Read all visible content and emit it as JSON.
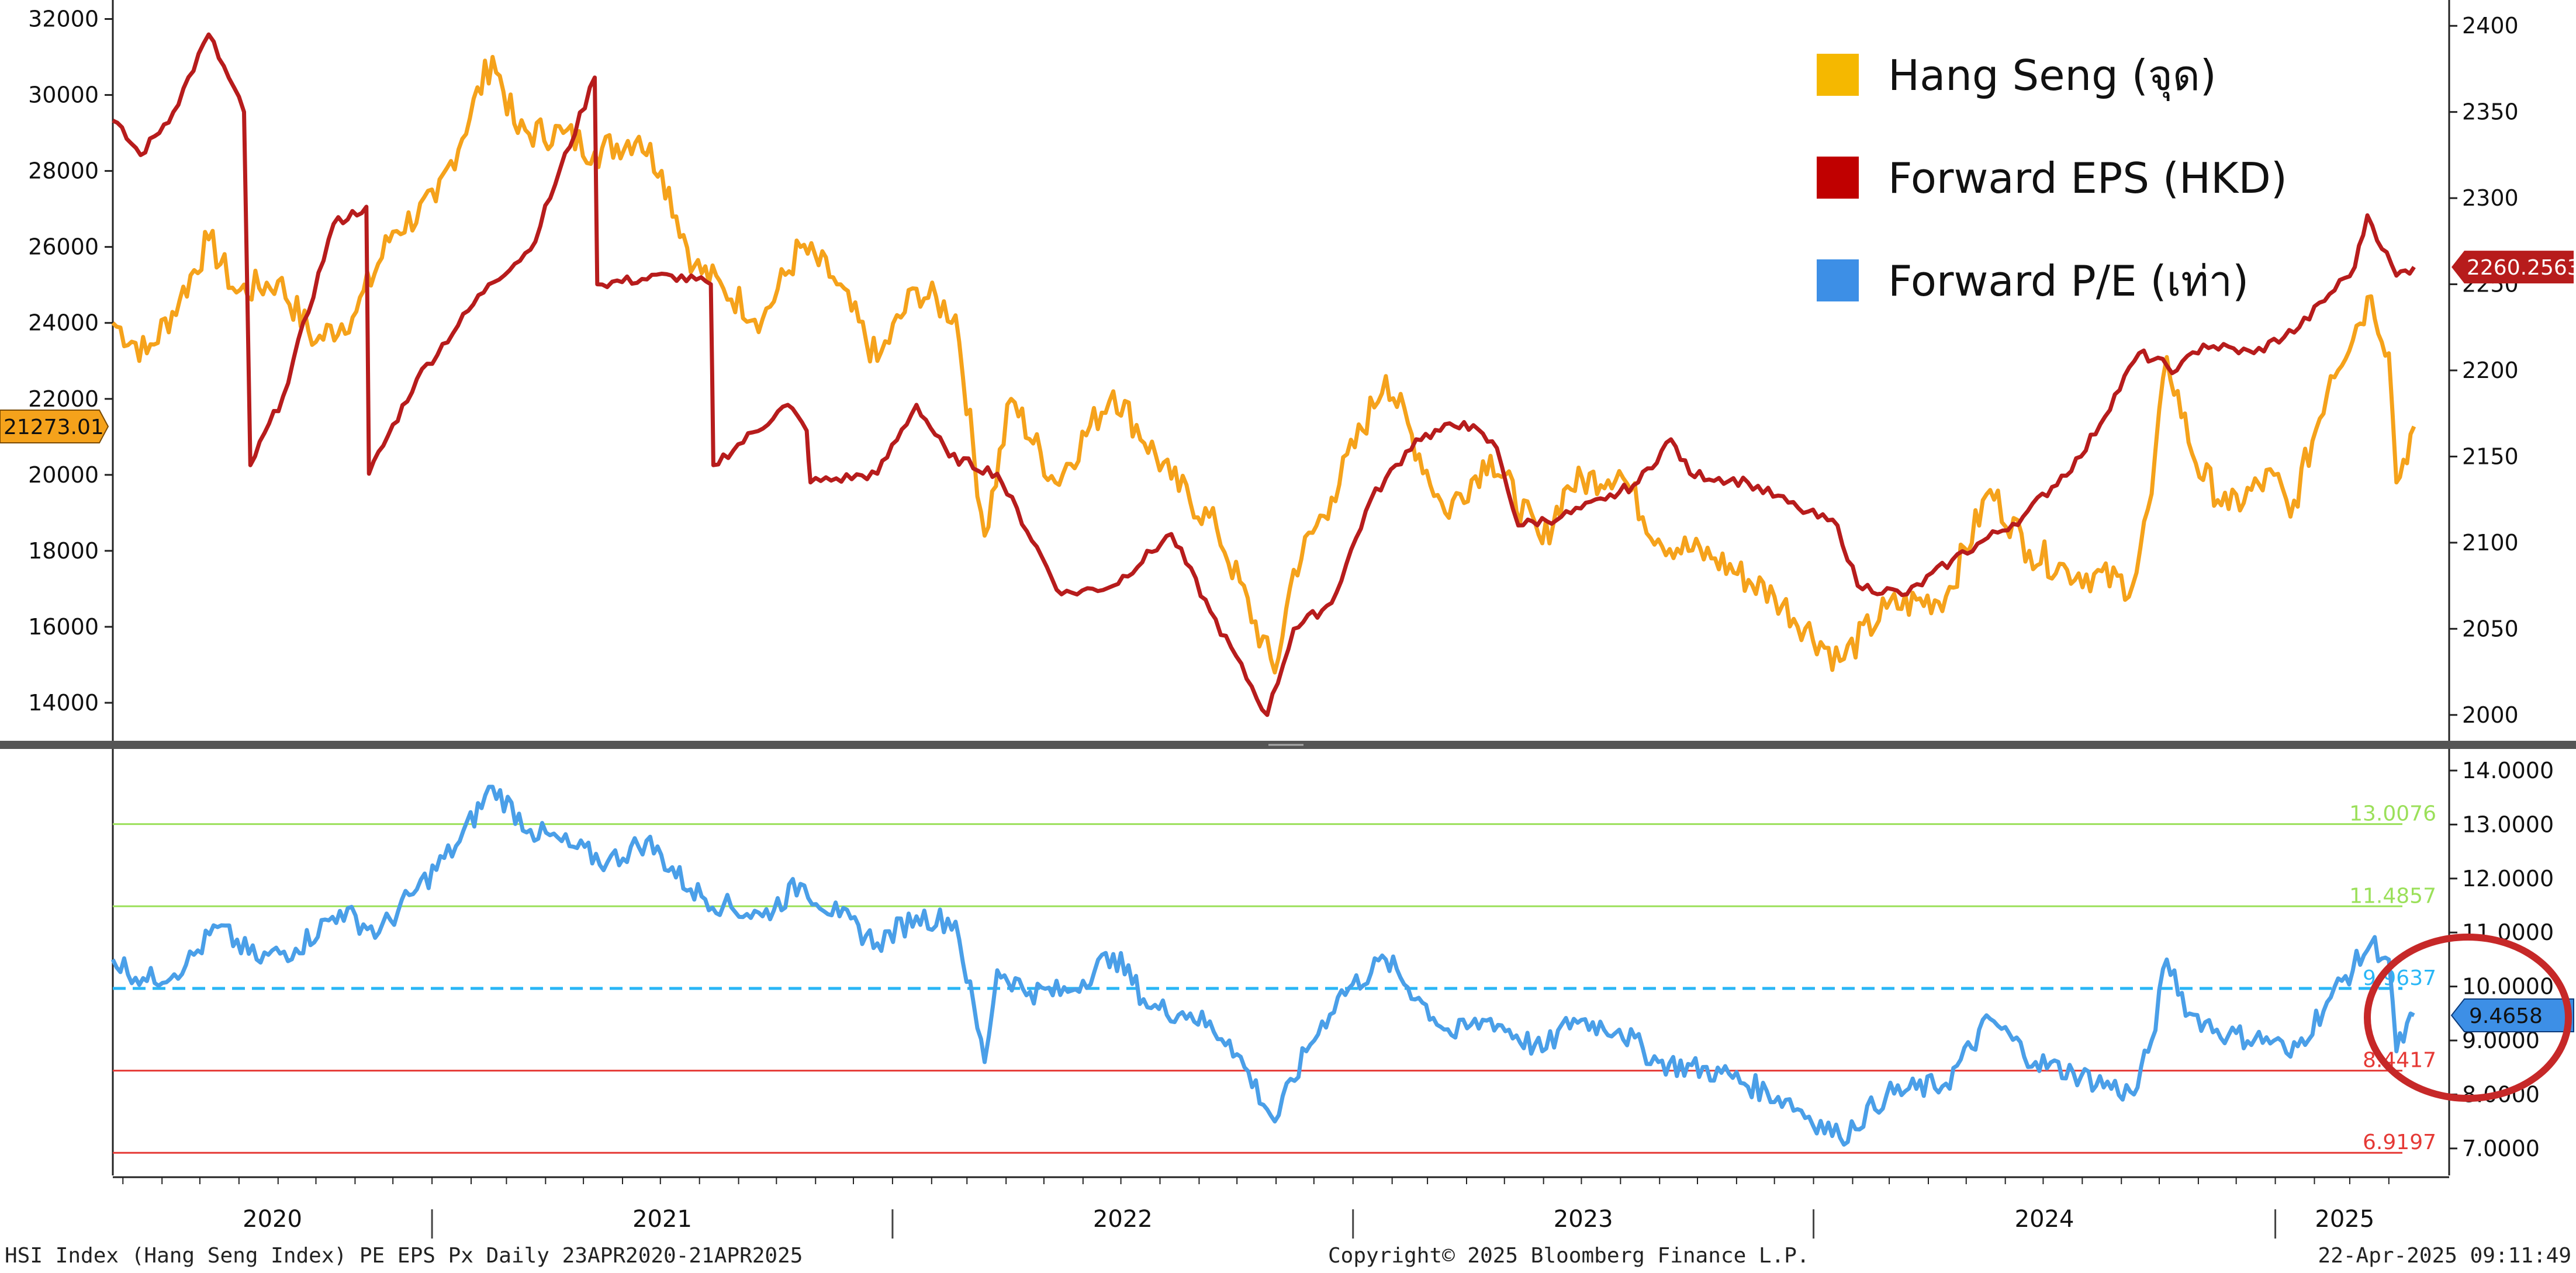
{
  "footer": {
    "left": "HSI Index (Hang Seng Index) PE EPS Px  Daily 23APR2020-21APR2025",
    "center": "Copyright© 2025 Bloomberg Finance L.P.",
    "right": "22-Apr-2025 09:11:49"
  },
  "colors": {
    "hang_seng": "#F5A21B",
    "eps": "#B71C1C",
    "pe": "#4A9FE8",
    "green_band": "#9BE05A",
    "mean": "#29B6F6",
    "red_band": "#E53935",
    "highlight_circle": "#C62828"
  },
  "chart_data": [
    {
      "type": "line",
      "title": "",
      "legend_position": "top-right",
      "legend": [
        {
          "label": "Hang Seng (จุด)",
          "color": "#F5B800"
        },
        {
          "label": "Forward EPS (HKD)",
          "color": "#C00000"
        },
        {
          "label": "Forward P/E (เท่า)",
          "color": "#3D8FE6"
        }
      ],
      "left_axis": {
        "ylim": [
          13000,
          32500
        ],
        "ticks": [
          "14000",
          "16000",
          "18000",
          "20000",
          "22000",
          "24000",
          "26000",
          "28000",
          "30000",
          "32000"
        ]
      },
      "right_axis": {
        "ylim": [
          1985,
          2415
        ],
        "ticks": [
          "2000",
          "2050",
          "2100",
          "2150",
          "2200",
          "2250",
          "2300",
          "2350",
          "2400"
        ]
      },
      "last_value_labels": {
        "hang_seng": "21273.01",
        "eps": "2260.2563"
      },
      "series": [
        {
          "name": "Hang Seng (จุด)",
          "axis": "left",
          "points": [
            [
              "2020-04-23",
              24000
            ],
            [
              "2020-05-20",
              23200
            ],
            [
              "2020-06-15",
              24600
            ],
            [
              "2020-07-08",
              26200
            ],
            [
              "2020-07-30",
              24800
            ],
            [
              "2020-09-01",
              25100
            ],
            [
              "2020-10-01",
              23500
            ],
            [
              "2020-11-02",
              24300
            ],
            [
              "2020-12-01",
              26400
            ],
            [
              "2021-01-04",
              27200
            ],
            [
              "2021-02-18",
              31000
            ],
            [
              "2021-03-10",
              29000
            ],
            [
              "2021-04-15",
              29000
            ],
            [
              "2021-05-10",
              28500
            ],
            [
              "2021-06-14",
              28900
            ],
            [
              "2021-07-02",
              28000
            ],
            [
              "2021-07-28",
              25500
            ],
            [
              "2021-08-20",
              24900
            ],
            [
              "2021-09-20",
              24100
            ],
            [
              "2021-10-20",
              26000
            ],
            [
              "2021-11-15",
              25200
            ],
            [
              "2021-12-20",
              23000
            ],
            [
              "2022-01-20",
              24900
            ],
            [
              "2022-02-20",
              24200
            ],
            [
              "2022-03-15",
              18400
            ],
            [
              "2022-04-05",
              22000
            ],
            [
              "2022-05-10",
              19800
            ],
            [
              "2022-06-25",
              22200
            ],
            [
              "2022-08-10",
              19900
            ],
            [
              "2022-09-15",
              18600
            ],
            [
              "2022-10-31",
              14800
            ],
            [
              "2022-11-15",
              17500
            ],
            [
              "2022-12-15",
              19400
            ],
            [
              "2023-01-27",
              22600
            ],
            [
              "2023-03-15",
              19000
            ],
            [
              "2023-04-20",
              20500
            ],
            [
              "2023-05-31",
              18200
            ],
            [
              "2023-06-20",
              19700
            ],
            [
              "2023-07-31",
              20100
            ],
            [
              "2023-08-31",
              18300
            ],
            [
              "2023-10-15",
              17800
            ],
            [
              "2023-12-01",
              16800
            ],
            [
              "2024-01-22",
              15100
            ],
            [
              "2024-02-28",
              16500
            ],
            [
              "2024-04-15",
              16800
            ],
            [
              "2024-05-20",
              19600
            ],
            [
              "2024-06-20",
              18000
            ],
            [
              "2024-07-20",
              17500
            ],
            [
              "2024-09-10",
              17100
            ],
            [
              "2024-09-25",
              19500
            ],
            [
              "2024-10-07",
              23100
            ],
            [
              "2024-10-30",
              20300
            ],
            [
              "2024-11-25",
              19100
            ],
            [
              "2024-12-31",
              20000
            ],
            [
              "2025-01-13",
              18900
            ],
            [
              "2025-02-14",
              22600
            ],
            [
              "2025-03-18",
              24700
            ],
            [
              "2025-04-01",
              23200
            ],
            [
              "2025-04-07",
              19800
            ],
            [
              "2025-04-21",
              21273
            ]
          ]
        },
        {
          "name": "Forward EPS (HKD)",
          "axis": "right",
          "points": [
            [
              "2020-04-23",
              2345
            ],
            [
              "2020-05-15",
              2325
            ],
            [
              "2020-06-10",
              2350
            ],
            [
              "2020-07-08",
              2395
            ],
            [
              "2020-08-05",
              2350
            ],
            [
              "2020-08-10",
              2145
            ],
            [
              "2020-09-05",
              2185
            ],
            [
              "2020-10-15",
              2285
            ],
            [
              "2020-11-10",
              2295
            ],
            [
              "2020-11-12",
              2140
            ],
            [
              "2020-12-20",
              2195
            ],
            [
              "2021-02-15",
              2250
            ],
            [
              "2021-03-20",
              2270
            ],
            [
              "2021-05-10",
              2370
            ],
            [
              "2021-05-12",
              2250
            ],
            [
              "2021-07-10",
              2255
            ],
            [
              "2021-08-10",
              2250
            ],
            [
              "2021-08-12",
              2145
            ],
            [
              "2021-10-10",
              2180
            ],
            [
              "2021-10-25",
              2165
            ],
            [
              "2021-10-28",
              2135
            ],
            [
              "2021-12-20",
              2140
            ],
            [
              "2022-01-20",
              2180
            ],
            [
              "2022-02-15",
              2150
            ],
            [
              "2022-03-25",
              2140
            ],
            [
              "2022-05-15",
              2070
            ],
            [
              "2022-06-25",
              2075
            ],
            [
              "2022-08-10",
              2105
            ],
            [
              "2022-09-10",
              2060
            ],
            [
              "2022-10-25",
              2000
            ],
            [
              "2022-11-15",
              2050
            ],
            [
              "2022-12-15",
              2065
            ],
            [
              "2023-01-15",
              2125
            ],
            [
              "2023-02-20",
              2160
            ],
            [
              "2023-03-30",
              2170
            ],
            [
              "2023-04-25",
              2155
            ],
            [
              "2023-05-12",
              2110
            ],
            [
              "2023-06-15",
              2115
            ],
            [
              "2023-07-20",
              2125
            ],
            [
              "2023-08-15",
              2135
            ],
            [
              "2023-09-10",
              2160
            ],
            [
              "2023-09-25",
              2140
            ],
            [
              "2023-11-10",
              2135
            ],
            [
              "2023-12-20",
              2120
            ],
            [
              "2024-01-20",
              2110
            ],
            [
              "2024-02-05",
              2075
            ],
            [
              "2024-03-15",
              2070
            ],
            [
              "2024-04-20",
              2090
            ],
            [
              "2024-06-15",
              2115
            ],
            [
              "2024-07-31",
              2150
            ],
            [
              "2024-09-15",
              2210
            ],
            [
              "2024-10-15",
              2200
            ],
            [
              "2024-11-05",
              2215
            ],
            [
              "2024-12-15",
              2210
            ],
            [
              "2025-01-20",
              2225
            ],
            [
              "2025-03-05",
              2260
            ],
            [
              "2025-03-15",
              2290
            ],
            [
              "2025-04-07",
              2255
            ],
            [
              "2025-04-21",
              2260
            ]
          ]
        }
      ]
    },
    {
      "type": "line",
      "title": "",
      "right_axis": {
        "ylim": [
          6.5,
          14.4
        ],
        "ticks": [
          "7.0000",
          "8.0000",
          "9.0000",
          "10.0000",
          "11.0000",
          "12.0000",
          "13.0000",
          "14.0000"
        ]
      },
      "x_ticks": [
        "2020",
        "2021",
        "2022",
        "2023",
        "2024",
        "2025"
      ],
      "reference_lines": [
        {
          "value": 13.0076,
          "label": "13.0076",
          "style": "solid",
          "color": "#9BE05A"
        },
        {
          "value": 11.4857,
          "label": "11.4857",
          "style": "solid",
          "color": "#9BE05A"
        },
        {
          "value": 9.9637,
          "label": "9.9637",
          "style": "dashed",
          "color": "#29B6F6"
        },
        {
          "value": 8.4417,
          "label": "8.4417",
          "style": "solid",
          "color": "#E53935"
        },
        {
          "value": 6.9197,
          "label": "6.9197",
          "style": "solid",
          "color": "#E53935"
        }
      ],
      "last_value_label": "9.4658",
      "series": [
        {
          "name": "Forward P/E (เท่า)",
          "points": [
            [
              "2020-04-23",
              10.5
            ],
            [
              "2020-05-20",
              10.1
            ],
            [
              "2020-06-20",
              10.4
            ],
            [
              "2020-07-15",
              11.1
            ],
            [
              "2020-08-15",
              10.5
            ],
            [
              "2020-09-15",
              10.7
            ],
            [
              "2020-10-20",
              11.4
            ],
            [
              "2020-11-20",
              11.0
            ],
            [
              "2020-12-20",
              11.8
            ],
            [
              "2021-01-20",
              12.6
            ],
            [
              "2021-02-18",
              13.7
            ],
            [
              "2021-03-20",
              12.9
            ],
            [
              "2021-04-20",
              12.6
            ],
            [
              "2021-05-20",
              12.3
            ],
            [
              "2021-06-20",
              12.7
            ],
            [
              "2021-07-25",
              11.8
            ],
            [
              "2021-08-20",
              11.5
            ],
            [
              "2021-09-20",
              11.3
            ],
            [
              "2021-10-20",
              11.9
            ],
            [
              "2021-11-20",
              11.3
            ],
            [
              "2021-12-20",
              10.8
            ],
            [
              "2022-01-20",
              11.3
            ],
            [
              "2022-02-20",
              11.2
            ],
            [
              "2022-03-15",
              8.6
            ],
            [
              "2022-03-25",
              10.3
            ],
            [
              "2022-04-20",
              9.9
            ],
            [
              "2022-05-20",
              9.9
            ],
            [
              "2022-06-25",
              10.6
            ],
            [
              "2022-07-25",
              9.6
            ],
            [
              "2022-08-25",
              9.5
            ],
            [
              "2022-09-25",
              9.0
            ],
            [
              "2022-10-31",
              7.5
            ],
            [
              "2022-11-25",
              8.8
            ],
            [
              "2022-12-20",
              9.8
            ],
            [
              "2023-01-27",
              10.5
            ],
            [
              "2023-02-25",
              9.7
            ],
            [
              "2023-03-20",
              9.1
            ],
            [
              "2023-04-20",
              9.4
            ],
            [
              "2023-05-31",
              8.8
            ],
            [
              "2023-06-25",
              9.4
            ],
            [
              "2023-07-31",
              9.2
            ],
            [
              "2023-08-31",
              8.6
            ],
            [
              "2023-10-20",
              8.4
            ],
            [
              "2023-12-10",
              7.9
            ],
            [
              "2024-01-22",
              7.2
            ],
            [
              "2024-02-28",
              8.0
            ],
            [
              "2024-04-15",
              8.2
            ],
            [
              "2024-05-20",
              9.4
            ],
            [
              "2024-06-25",
              8.6
            ],
            [
              "2024-07-25",
              8.4
            ],
            [
              "2024-09-11",
              8.0
            ],
            [
              "2024-09-25",
              9.0
            ],
            [
              "2024-10-07",
              10.5
            ],
            [
              "2024-10-25",
              9.5
            ],
            [
              "2024-11-25",
              9.1
            ],
            [
              "2024-12-31",
              9.0
            ],
            [
              "2025-01-13",
              8.7
            ],
            [
              "2025-02-14",
              9.8
            ],
            [
              "2025-03-18",
              10.8
            ],
            [
              "2025-04-01",
              10.5
            ],
            [
              "2025-04-07",
              8.8
            ],
            [
              "2025-04-21",
              9.4658
            ]
          ]
        }
      ]
    }
  ]
}
